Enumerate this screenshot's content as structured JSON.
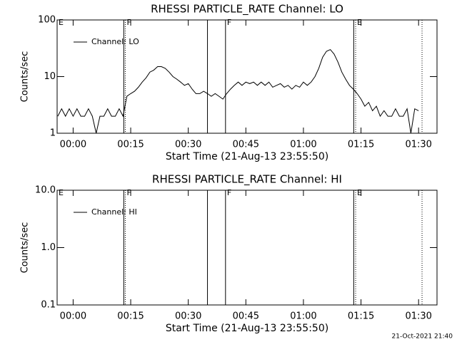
{
  "chart_data": [
    {
      "type": "line",
      "title": "RHESSI PARTICLE_RATE Channel: LO",
      "x_label": "Start Time (21-Aug-13 23:55:50)",
      "y_label": "Counts/sec",
      "log_scale": true,
      "legend": "upper left",
      "x": [
        -4,
        -3,
        -2,
        -1,
        0,
        1,
        2,
        3,
        4,
        5,
        6,
        7,
        8,
        9,
        10,
        11,
        12,
        13,
        14,
        15,
        16,
        17,
        18,
        19,
        20,
        21,
        22,
        23,
        24,
        25,
        26,
        27,
        28,
        29,
        30,
        31,
        32,
        33,
        34,
        35,
        36,
        37,
        38,
        39,
        40,
        41,
        42,
        43,
        44,
        45,
        46,
        47,
        48,
        49,
        50,
        51,
        52,
        53,
        54,
        55,
        56,
        57,
        58,
        59,
        60,
        61,
        62,
        63,
        64,
        65,
        66,
        67,
        68,
        69,
        70,
        71,
        72,
        73,
        74,
        75,
        76,
        77,
        78,
        79,
        80,
        81,
        82,
        83,
        84,
        85,
        86,
        87,
        88,
        89,
        90
      ],
      "series": [
        {
          "name": "Channel: LO",
          "color": "#000000",
          "values": [
            2,
            2.7,
            2,
            2.7,
            2,
            2.7,
            2,
            2,
            2.7,
            2,
            1,
            2,
            2,
            2.7,
            2,
            2,
            2.7,
            2,
            4.5,
            5,
            5.5,
            6.5,
            8,
            9.5,
            12,
            13,
            15,
            15,
            14,
            12,
            10,
            9,
            8,
            7,
            7.5,
            6,
            5,
            5,
            5.5,
            5,
            4.5,
            5,
            4.5,
            4,
            5,
            6,
            7,
            8,
            7,
            8,
            7.5,
            8,
            7,
            8,
            7,
            8,
            6.5,
            7,
            7.5,
            6.5,
            7,
            6,
            7,
            6.5,
            8,
            7,
            8,
            10,
            14,
            22,
            28,
            30,
            25,
            18,
            12,
            9,
            7,
            6,
            5,
            4,
            3,
            3.5,
            2.5,
            3,
            2,
            2.5,
            2,
            2,
            2.7,
            2,
            2,
            2.7,
            1,
            2.7,
            2.5
          ]
        }
      ],
      "xlim": [
        -4.17,
        94.8
      ],
      "xticks": [
        {
          "value": 0,
          "label": "00:00"
        },
        {
          "value": 15,
          "label": "00:15"
        },
        {
          "value": 30,
          "label": "00:30"
        },
        {
          "value": 45,
          "label": "00:45"
        },
        {
          "value": 60,
          "label": "01:00"
        },
        {
          "value": 75,
          "label": "01:15"
        },
        {
          "value": 90,
          "label": "01:30"
        }
      ],
      "ylim": [
        1,
        100
      ],
      "yticks": [
        1,
        10,
        100
      ],
      "markers": [
        {
          "x": -4.17,
          "style": "dotted",
          "label": "E"
        },
        {
          "x": 13.2,
          "style": "solid"
        },
        {
          "x": 13.6,
          "style": "dotted",
          "label": "F"
        },
        {
          "x": 35,
          "style": "solid"
        },
        {
          "x": 39.7,
          "style": "solid",
          "label": "F"
        },
        {
          "x": 73.1,
          "style": "solid"
        },
        {
          "x": 73.6,
          "style": "dotted",
          "label": "E"
        },
        {
          "x": 90.9,
          "style": "dotted"
        }
      ]
    },
    {
      "type": "line",
      "title": "RHESSI PARTICLE_RATE Channel: HI",
      "x_label": "Start Time (21-Aug-13 23:55:50)",
      "y_label": "Counts/sec",
      "log_scale": true,
      "legend": "upper left",
      "x": [],
      "series": [
        {
          "name": "Channel: HI",
          "color": "#000000",
          "values": []
        }
      ],
      "xlim": [
        -4.17,
        94.8
      ],
      "xticks": [
        {
          "value": 0,
          "label": "00:00"
        },
        {
          "value": 15,
          "label": "00:15"
        },
        {
          "value": 30,
          "label": "00:30"
        },
        {
          "value": 45,
          "label": "00:45"
        },
        {
          "value": 60,
          "label": "01:00"
        },
        {
          "value": 75,
          "label": "01:15"
        },
        {
          "value": 90,
          "label": "01:30"
        }
      ],
      "ylim": [
        0.1,
        10
      ],
      "yticks": [
        {
          "value": 0.1,
          "label": "0.1"
        },
        {
          "value": 1,
          "label": "1.0"
        },
        {
          "value": 10,
          "label": "10.0"
        }
      ],
      "markers": [
        {
          "x": -4.17,
          "style": "dotted",
          "label": "E"
        },
        {
          "x": 13.2,
          "style": "solid"
        },
        {
          "x": 13.6,
          "style": "dotted",
          "label": "F"
        },
        {
          "x": 35,
          "style": "solid"
        },
        {
          "x": 39.7,
          "style": "solid",
          "label": "F"
        },
        {
          "x": 73.1,
          "style": "solid"
        },
        {
          "x": 73.6,
          "style": "dotted",
          "label": "E"
        },
        {
          "x": 90.9,
          "style": "dotted"
        }
      ]
    }
  ],
  "footer": "21-Oct-2021 21:40"
}
